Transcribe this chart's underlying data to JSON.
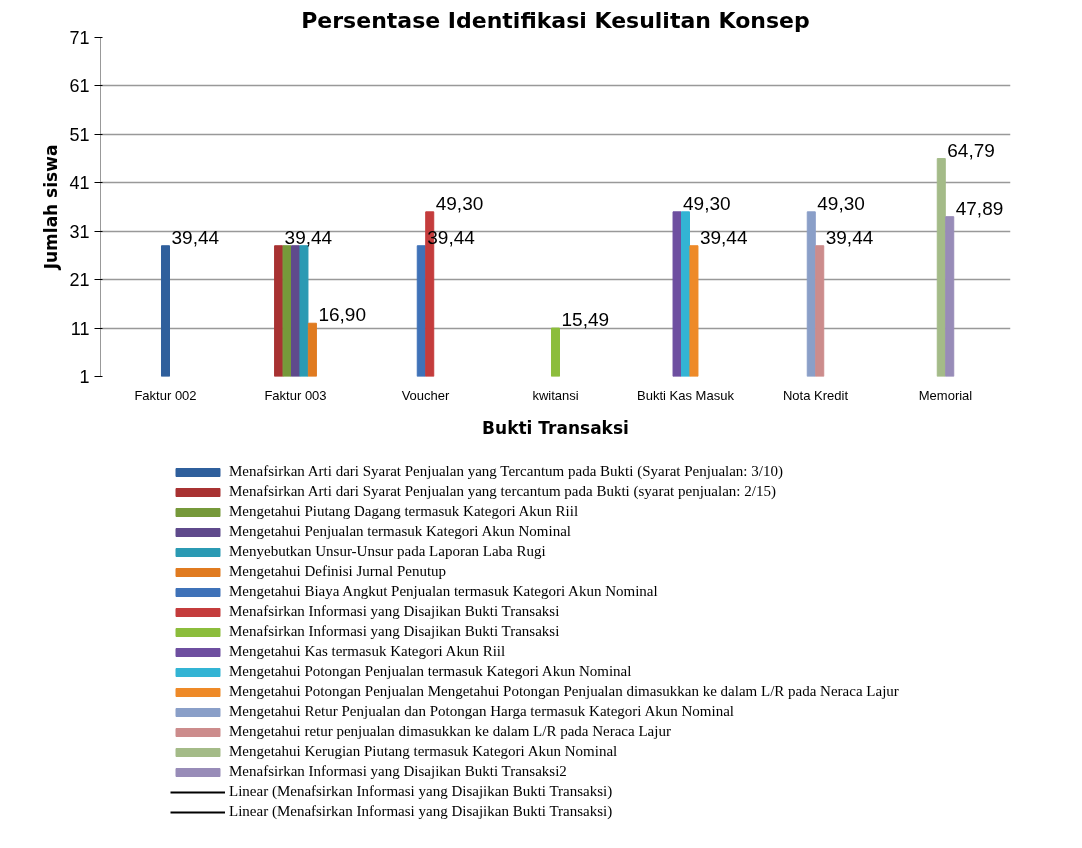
{
  "chart_data": {
    "type": "bar",
    "title": "Persentase Identifikasi Kesulitan Konsep",
    "xlabel": "Bukti Transaksi",
    "ylabel": "Jumlah siswa",
    "categories": [
      "Faktur 002",
      "Faktur 003",
      "Voucher",
      "kwitansi",
      "Bukti Kas Masuk",
      "Nota Kredit",
      "Memorial"
    ],
    "ylim": [
      1,
      71
    ],
    "yticks": [
      1,
      11,
      21,
      31,
      41,
      51,
      61,
      71
    ],
    "grid": "y",
    "legend": "bottom",
    "annotations": [
      {
        "text": "39,44",
        "x": "Faktur 002",
        "y": 28
      },
      {
        "text": "39,44",
        "x": "Faktur 003",
        "y": 28
      },
      {
        "text": "16,90",
        "x": "Faktur 003",
        "y": 12
      },
      {
        "text": "39,44",
        "x": "Voucher",
        "y": 28
      },
      {
        "text": "49,30",
        "x": "Voucher",
        "y": 35
      },
      {
        "text": "15,49",
        "x": "kwitansi",
        "y": 11
      },
      {
        "text": "49,30",
        "x": "Bukti Kas Masuk",
        "y": 35
      },
      {
        "text": "39,44",
        "x": "Bukti Kas Masuk",
        "y": 28
      },
      {
        "text": "49,30",
        "x": "Nota Kredit",
        "y": 35
      },
      {
        "text": "39,44",
        "x": "Nota Kredit",
        "y": 28
      },
      {
        "text": "64,79",
        "x": "Memorial",
        "y": 46
      },
      {
        "text": "47,89",
        "x": "Memorial",
        "y": 34
      }
    ],
    "series": [
      {
        "name": "Menafsirkan Arti dari Syarat Penjualan yang Tercantum pada Bukti (Syarat Penjualan: 3/10)",
        "color": "#2f5f9c",
        "values": [
          28,
          null,
          null,
          null,
          null,
          null,
          null
        ]
      },
      {
        "name": "Menafsirkan Arti dari Syarat Penjualan yang tercantum pada Bukti (syarat penjualan: 2/15)",
        "color": "#a83232",
        "values": [
          null,
          28,
          null,
          null,
          null,
          null,
          null
        ]
      },
      {
        "name": "Mengetahui Piutang Dagang termasuk Kategori Akun Riil",
        "color": "#76993a",
        "values": [
          null,
          28,
          null,
          null,
          null,
          null,
          null
        ]
      },
      {
        "name": "Mengetahui Penjualan termasuk Kategori Akun Nominal",
        "color": "#5f4a8c",
        "values": [
          null,
          28,
          null,
          null,
          null,
          null,
          null
        ]
      },
      {
        "name": "Menyebutkan Unsur-Unsur pada Laporan Laba Rugi",
        "color": "#2b9ab3",
        "values": [
          null,
          28,
          null,
          null,
          null,
          null,
          null
        ]
      },
      {
        "name": "Mengetahui Definisi Jurnal Penutup",
        "color": "#e07b20",
        "values": [
          null,
          12,
          null,
          null,
          null,
          null,
          null
        ]
      },
      {
        "name": "Mengetahui Biaya Angkut Penjualan termasuk Kategori Akun Nominal",
        "color": "#3f72b8",
        "values": [
          null,
          null,
          28,
          null,
          null,
          null,
          null
        ]
      },
      {
        "name": "Menafsirkan Informasi yang Disajikan Bukti Transaksi",
        "color": "#c43c3c",
        "values": [
          null,
          null,
          35,
          null,
          null,
          null,
          null
        ]
      },
      {
        "name": "Menafsirkan Informasi yang Disajikan Bukti Transaksi",
        "color": "#8cbd3c",
        "values": [
          null,
          null,
          null,
          11,
          null,
          null,
          null
        ]
      },
      {
        "name": "Mengetahui Kas termasuk Kategori Akun Riil",
        "color": "#6e4fa0",
        "values": [
          null,
          null,
          null,
          null,
          35,
          null,
          null
        ]
      },
      {
        "name": "Mengetahui Potongan Penjualan termasuk Kategori Akun Nominal",
        "color": "#33b4d4",
        "values": [
          null,
          null,
          null,
          null,
          35,
          null,
          null
        ]
      },
      {
        "name": "Mengetahui Potongan Penjualan Mengetahui Potongan Penjualan dimasukkan ke dalam L/R pada Neraca Lajur",
        "color": "#ee8a28",
        "values": [
          null,
          null,
          null,
          null,
          28,
          null,
          null
        ]
      },
      {
        "name": "Mengetahui Retur Penjualan dan Potongan Harga termasuk Kategori Akun Nominal",
        "color": "#8a9fc8",
        "values": [
          null,
          null,
          null,
          null,
          null,
          35,
          null
        ]
      },
      {
        "name": "Mengetahui retur penjualan dimasukkan ke dalam L/R pada Neraca Lajur",
        "color": "#cc8c8c",
        "values": [
          null,
          null,
          null,
          null,
          null,
          28,
          null
        ]
      },
      {
        "name": "Mengetahui Kerugian Piutang termasuk Kategori Akun Nominal",
        "color": "#a4bb88",
        "values": [
          null,
          null,
          null,
          null,
          null,
          null,
          46
        ]
      },
      {
        "name": "Menafsirkan Informasi yang Disajikan Bukti Transaksi2",
        "color": "#988cb8",
        "values": [
          null,
          null,
          null,
          null,
          null,
          null,
          34
        ]
      },
      {
        "name": "Linear (Menafsirkan Informasi yang Disajikan Bukti Transaksi)",
        "type": "line",
        "color": "#000000",
        "values": [
          null,
          null,
          null,
          null,
          null,
          null,
          null
        ]
      },
      {
        "name": "Linear (Menafsirkan Informasi yang Disajikan Bukti Transaksi)",
        "type": "line",
        "color": "#000000",
        "values": [
          null,
          null,
          null,
          null,
          null,
          null,
          null
        ]
      }
    ]
  }
}
